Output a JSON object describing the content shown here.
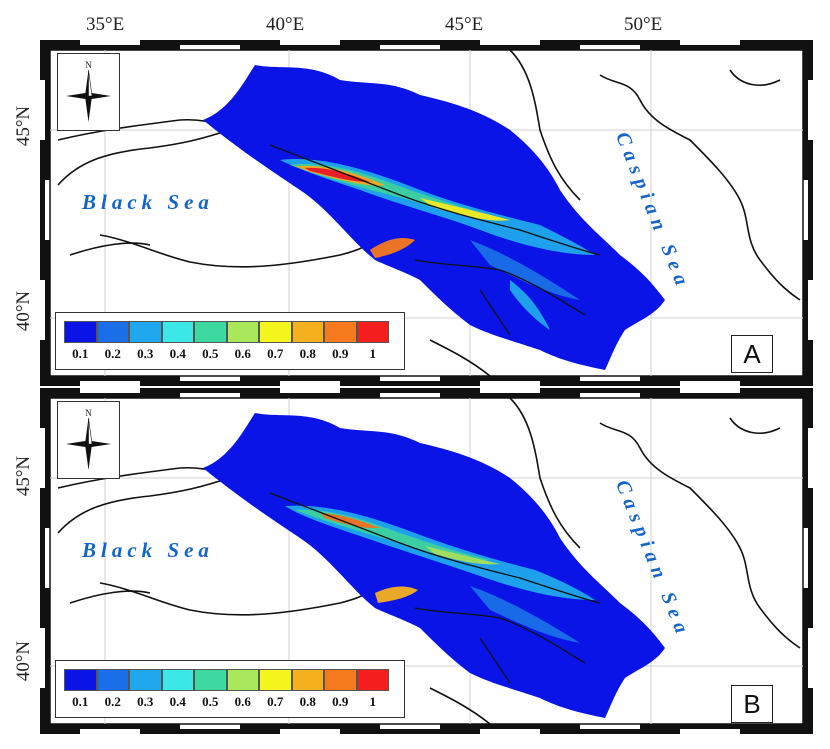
{
  "longitude_labels": [
    "35°E",
    "40°E",
    "45°E",
    "50°E"
  ],
  "latitude_labels": [
    "45°N",
    "40°N"
  ],
  "sea_labels": {
    "black_sea": "Black Sea",
    "caspian_sea": "Caspian Sea"
  },
  "compass_label": "N",
  "legend": {
    "ticks": [
      "0.1",
      "0.2",
      "0.3",
      "0.4",
      "0.5",
      "0.6",
      "0.7",
      "0.8",
      "0.9",
      "1"
    ],
    "colors": [
      "#0a14e6",
      "#1a6fe8",
      "#20a8ee",
      "#3be8e8",
      "#3ed9a0",
      "#a8e85a",
      "#f5f51e",
      "#f5b01e",
      "#f57a1e",
      "#f51e1e"
    ]
  },
  "panels": [
    {
      "letter": "A"
    },
    {
      "letter": "B"
    }
  ],
  "colors": {
    "region": "#0a14e6",
    "sea_text": "#1565c8",
    "border": "#111111"
  }
}
